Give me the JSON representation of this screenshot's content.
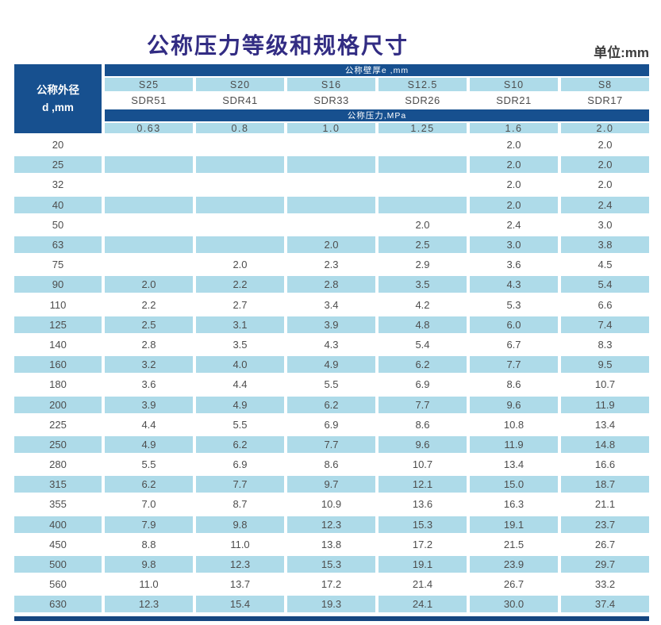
{
  "page": {
    "title": "公称压力等级和规格尺寸",
    "unit_label": "单位:mm"
  },
  "colors": {
    "dark_blue": "#17508f",
    "light_blue": "#aedbe9",
    "bottom_bar_blue": "#154680",
    "title_color": "#322c83",
    "text_gray": "#4d4d4d"
  },
  "table": {
    "corner_header": {
      "line1": "公称外径",
      "line2": "d ,mm"
    },
    "wall_thickness_band": "公称壁厚e ,mm",
    "pressure_band": "公称压力,MPa",
    "series_labels": [
      "S25",
      "S20",
      "S16",
      "S12.5",
      "S10",
      "S8"
    ],
    "sdr_labels": [
      "SDR51",
      "SDR41",
      "SDR33",
      "SDR26",
      "SDR21",
      "SDR17"
    ],
    "pressure_values": [
      "0.63",
      "0.8",
      "1.0",
      "1.25",
      "1.6",
      "2.0"
    ],
    "rows": [
      {
        "d": "20",
        "values": [
          "",
          "",
          "",
          "",
          "2.0",
          "2.0"
        ]
      },
      {
        "d": "25",
        "values": [
          "",
          "",
          "",
          "",
          "2.0",
          "2.0"
        ]
      },
      {
        "d": "32",
        "values": [
          "",
          "",
          "",
          "",
          "2.0",
          "2.0"
        ]
      },
      {
        "d": "40",
        "values": [
          "",
          "",
          "",
          "",
          "2.0",
          "2.4"
        ]
      },
      {
        "d": "50",
        "values": [
          "",
          "",
          "",
          "2.0",
          "2.4",
          "3.0"
        ]
      },
      {
        "d": "63",
        "values": [
          "",
          "",
          "2.0",
          "2.5",
          "3.0",
          "3.8"
        ]
      },
      {
        "d": "75",
        "values": [
          "",
          "2.0",
          "2.3",
          "2.9",
          "3.6",
          "4.5"
        ]
      },
      {
        "d": "90",
        "values": [
          "2.0",
          "2.2",
          "2.8",
          "3.5",
          "4.3",
          "5.4"
        ]
      },
      {
        "d": "110",
        "values": [
          "2.2",
          "2.7",
          "3.4",
          "4.2",
          "5.3",
          "6.6"
        ]
      },
      {
        "d": "125",
        "values": [
          "2.5",
          "3.1",
          "3.9",
          "4.8",
          "6.0",
          "7.4"
        ]
      },
      {
        "d": "140",
        "values": [
          "2.8",
          "3.5",
          "4.3",
          "5.4",
          "6.7",
          "8.3"
        ]
      },
      {
        "d": "160",
        "values": [
          "3.2",
          "4.0",
          "4.9",
          "6.2",
          "7.7",
          "9.5"
        ]
      },
      {
        "d": "180",
        "values": [
          "3.6",
          "4.4",
          "5.5",
          "6.9",
          "8.6",
          "10.7"
        ]
      },
      {
        "d": "200",
        "values": [
          "3.9",
          "4.9",
          "6.2",
          "7.7",
          "9.6",
          "11.9"
        ]
      },
      {
        "d": "225",
        "values": [
          "4.4",
          "5.5",
          "6.9",
          "8.6",
          "10.8",
          "13.4"
        ]
      },
      {
        "d": "250",
        "values": [
          "4.9",
          "6.2",
          "7.7",
          "9.6",
          "11.9",
          "14.8"
        ]
      },
      {
        "d": "280",
        "values": [
          "5.5",
          "6.9",
          "8.6",
          "10.7",
          "13.4",
          "16.6"
        ]
      },
      {
        "d": "315",
        "values": [
          "6.2",
          "7.7",
          "9.7",
          "12.1",
          "15.0",
          "18.7"
        ]
      },
      {
        "d": "355",
        "values": [
          "7.0",
          "8.7",
          "10.9",
          "13.6",
          "16.3",
          "21.1"
        ]
      },
      {
        "d": "400",
        "values": [
          "7.9",
          "9.8",
          "12.3",
          "15.3",
          "19.1",
          "23.7"
        ]
      },
      {
        "d": "450",
        "values": [
          "8.8",
          "11.0",
          "13.8",
          "17.2",
          "21.5",
          "26.7"
        ]
      },
      {
        "d": "500",
        "values": [
          "9.8",
          "12.3",
          "15.3",
          "19.1",
          "23.9",
          "29.7"
        ]
      },
      {
        "d": "560",
        "values": [
          "11.0",
          "13.7",
          "17.2",
          "21.4",
          "26.7",
          "33.2"
        ]
      },
      {
        "d": "630",
        "values": [
          "12.3",
          "15.4",
          "19.3",
          "24.1",
          "30.0",
          "37.4"
        ]
      }
    ]
  }
}
